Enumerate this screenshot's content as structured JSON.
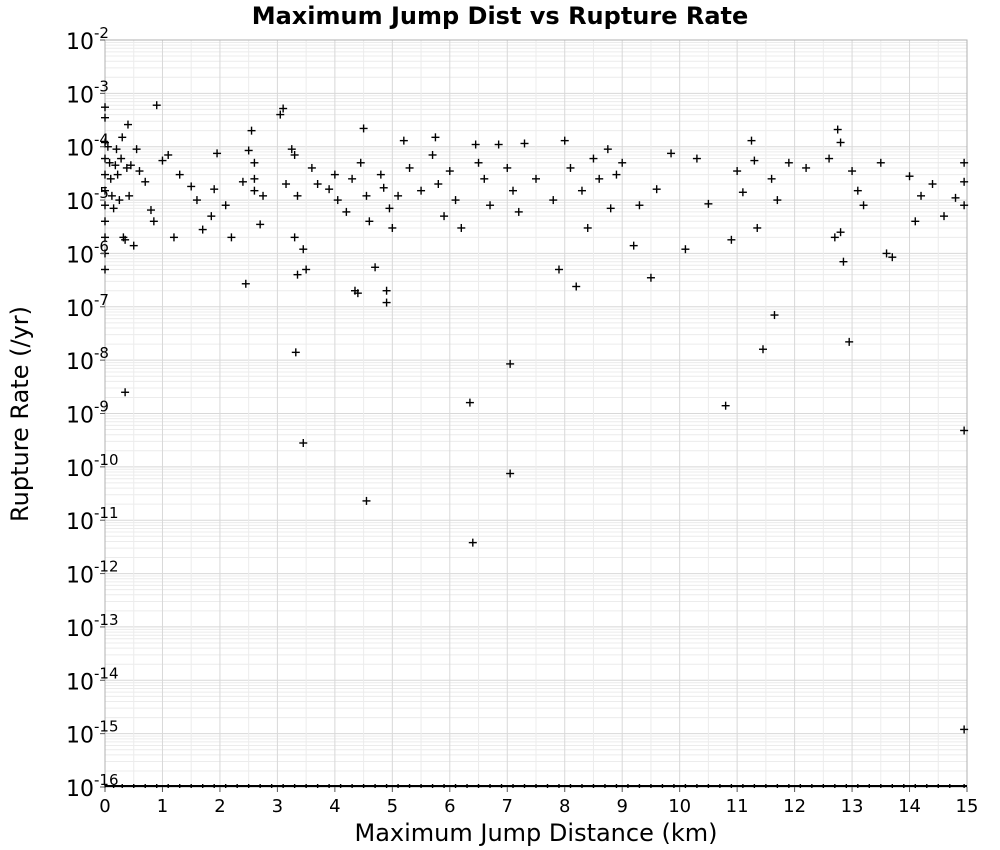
{
  "chart_data": {
    "type": "scatter",
    "title": "Maximum Jump Dist vs Rupture Rate",
    "xlabel": "Maximum Jump Distance (km)",
    "ylabel": "Rupture Rate (/yr)",
    "xlim": [
      0,
      15
    ],
    "ylim": [
      1e-16,
      0.01
    ],
    "yscale": "log",
    "grid": true,
    "marker": "plus",
    "x_ticks": [
      "0",
      "1",
      "2",
      "3",
      "4",
      "5",
      "6",
      "7",
      "8",
      "9",
      "10",
      "11",
      "12",
      "13",
      "14",
      "15"
    ],
    "y_ticks": [
      {
        "base": "10",
        "exp": "-2"
      },
      {
        "base": "10",
        "exp": "-3"
      },
      {
        "base": "10",
        "exp": "-4"
      },
      {
        "base": "10",
        "exp": "-5"
      },
      {
        "base": "10",
        "exp": "-6"
      },
      {
        "base": "10",
        "exp": "-7"
      },
      {
        "base": "10",
        "exp": "-8"
      },
      {
        "base": "10",
        "exp": "-9"
      },
      {
        "base": "10",
        "exp": "-10"
      },
      {
        "base": "10",
        "exp": "-11"
      },
      {
        "base": "10",
        "exp": "-12"
      },
      {
        "base": "10",
        "exp": "-13"
      },
      {
        "base": "10",
        "exp": "-14"
      },
      {
        "base": "10",
        "exp": "-15"
      },
      {
        "base": "10",
        "exp": "-16"
      }
    ],
    "points": [
      [
        0.0,
        0.00055
      ],
      [
        0.0,
        0.00035
      ],
      [
        0.0,
        0.00012
      ],
      [
        0.0,
        6e-05
      ],
      [
        0.0,
        3e-05
      ],
      [
        0.0,
        1.5e-05
      ],
      [
        0.0,
        8e-06
      ],
      [
        0.0,
        4e-06
      ],
      [
        0.0,
        2e-06
      ],
      [
        0.0,
        1e-06
      ],
      [
        0.0,
        5e-07
      ],
      [
        0.05,
        0.0001
      ],
      [
        0.08,
        5e-05
      ],
      [
        0.1,
        2.5e-05
      ],
      [
        0.12,
        1.2e-05
      ],
      [
        0.15,
        7e-06
      ],
      [
        0.18,
        4.5e-05
      ],
      [
        0.2,
        9e-05
      ],
      [
        0.22,
        3e-05
      ],
      [
        0.25,
        1e-05
      ],
      [
        0.28,
        6e-05
      ],
      [
        0.3,
        0.00015
      ],
      [
        0.32,
        2e-06
      ],
      [
        0.35,
        1.8e-06
      ],
      [
        0.35,
        2.5e-09
      ],
      [
        0.38,
        4e-05
      ],
      [
        0.4,
        0.00026
      ],
      [
        0.42,
        1.2e-05
      ],
      [
        0.45,
        4.5e-05
      ],
      [
        0.5,
        1.4e-06
      ],
      [
        0.55,
        9e-05
      ],
      [
        0.6,
        3.5e-05
      ],
      [
        0.7,
        2.2e-05
      ],
      [
        0.8,
        6.5e-06
      ],
      [
        0.85,
        4e-06
      ],
      [
        0.9,
        0.0006
      ],
      [
        1.0,
        5.5e-05
      ],
      [
        1.1,
        7e-05
      ],
      [
        1.2,
        2e-06
      ],
      [
        1.3,
        3e-05
      ],
      [
        1.5,
        1.8e-05
      ],
      [
        1.6,
        1e-05
      ],
      [
        1.7,
        2.8e-06
      ],
      [
        1.85,
        5e-06
      ],
      [
        1.9,
        1.6e-05
      ],
      [
        1.95,
        7.5e-05
      ],
      [
        2.1,
        8e-06
      ],
      [
        2.2,
        2e-06
      ],
      [
        2.4,
        2.2e-05
      ],
      [
        2.45,
        2.7e-07
      ],
      [
        2.5,
        8.5e-05
      ],
      [
        2.55,
        0.0002
      ],
      [
        2.6,
        5e-05
      ],
      [
        2.6,
        2.5e-05
      ],
      [
        2.6,
        1.5e-05
      ],
      [
        2.7,
        3.5e-06
      ],
      [
        2.75,
        1.2e-05
      ],
      [
        3.05,
        0.0004
      ],
      [
        3.1,
        0.00052
      ],
      [
        3.15,
        2e-05
      ],
      [
        3.25,
        9e-05
      ],
      [
        3.3,
        7e-05
      ],
      [
        3.3,
        2e-06
      ],
      [
        3.32,
        1.4e-08
      ],
      [
        3.35,
        4e-07
      ],
      [
        3.35,
        1.2e-05
      ],
      [
        3.45,
        1.2e-06
      ],
      [
        3.45,
        2.8e-10
      ],
      [
        3.5,
        5e-07
      ],
      [
        3.6,
        4e-05
      ],
      [
        3.7,
        2e-05
      ],
      [
        3.9,
        1.6e-05
      ],
      [
        4.0,
        3e-05
      ],
      [
        4.05,
        1e-05
      ],
      [
        4.2,
        6e-06
      ],
      [
        4.3,
        2.5e-05
      ],
      [
        4.35,
        2e-07
      ],
      [
        4.4,
        1.8e-07
      ],
      [
        4.45,
        5e-05
      ],
      [
        4.5,
        0.00022
      ],
      [
        4.55,
        1.2e-05
      ],
      [
        4.55,
        2.3e-11
      ],
      [
        4.6,
        4e-06
      ],
      [
        4.7,
        5.5e-07
      ],
      [
        4.8,
        3e-05
      ],
      [
        4.85,
        1.7e-05
      ],
      [
        4.9,
        1.2e-07
      ],
      [
        4.9,
        2e-07
      ],
      [
        4.95,
        7e-06
      ],
      [
        5.0,
        3e-06
      ],
      [
        5.1,
        1.2e-05
      ],
      [
        5.2,
        0.00013
      ],
      [
        5.3,
        4e-05
      ],
      [
        5.5,
        1.5e-05
      ],
      [
        5.7,
        7e-05
      ],
      [
        5.75,
        0.00015
      ],
      [
        5.8,
        2e-05
      ],
      [
        5.9,
        5e-06
      ],
      [
        6.0,
        3.5e-05
      ],
      [
        6.1,
        1e-05
      ],
      [
        6.2,
        3e-06
      ],
      [
        6.35,
        1.6e-09
      ],
      [
        6.4,
        3.8e-12
      ],
      [
        6.45,
        0.00011
      ],
      [
        6.5,
        5e-05
      ],
      [
        6.6,
        2.5e-05
      ],
      [
        6.7,
        8e-06
      ],
      [
        6.85,
        0.00011
      ],
      [
        7.0,
        4e-05
      ],
      [
        7.05,
        8.5e-09
      ],
      [
        7.05,
        7.5e-11
      ],
      [
        7.1,
        1.5e-05
      ],
      [
        7.2,
        6e-06
      ],
      [
        7.3,
        0.000115
      ],
      [
        7.5,
        2.5e-05
      ],
      [
        7.8,
        1e-05
      ],
      [
        7.9,
        5e-07
      ],
      [
        8.0,
        0.00013
      ],
      [
        8.1,
        4e-05
      ],
      [
        8.2,
        2.4e-07
      ],
      [
        8.3,
        1.5e-05
      ],
      [
        8.4,
        3e-06
      ],
      [
        8.5,
        6e-05
      ],
      [
        8.6,
        2.5e-05
      ],
      [
        8.75,
        9e-05
      ],
      [
        8.8,
        7e-06
      ],
      [
        8.9,
        3e-05
      ],
      [
        9.0,
        5e-05
      ],
      [
        9.2,
        1.4e-06
      ],
      [
        9.3,
        8e-06
      ],
      [
        9.5,
        3.5e-07
      ],
      [
        9.6,
        1.6e-05
      ],
      [
        9.85,
        7.5e-05
      ],
      [
        10.1,
        1.2e-06
      ],
      [
        10.3,
        6e-05
      ],
      [
        10.5,
        8.5e-06
      ],
      [
        10.8,
        1.4e-09
      ],
      [
        10.9,
        1.8e-06
      ],
      [
        11.0,
        3.5e-05
      ],
      [
        11.1,
        1.4e-05
      ],
      [
        11.25,
        0.00013
      ],
      [
        11.3,
        5.5e-05
      ],
      [
        11.35,
        3e-06
      ],
      [
        11.45,
        1.6e-08
      ],
      [
        11.6,
        2.5e-05
      ],
      [
        11.65,
        7e-08
      ],
      [
        11.7,
        1e-05
      ],
      [
        11.9,
        5e-05
      ],
      [
        12.2,
        4e-05
      ],
      [
        12.6,
        6e-05
      ],
      [
        12.7,
        2e-06
      ],
      [
        12.75,
        0.00021
      ],
      [
        12.8,
        0.00012
      ],
      [
        12.8,
        2.5e-06
      ],
      [
        12.85,
        7e-07
      ],
      [
        12.95,
        2.2e-08
      ],
      [
        13.0,
        3.5e-05
      ],
      [
        13.1,
        1.5e-05
      ],
      [
        13.2,
        8e-06
      ],
      [
        13.5,
        5e-05
      ],
      [
        13.6,
        1e-06
      ],
      [
        13.7,
        8.5e-07
      ],
      [
        14.0,
        2.8e-05
      ],
      [
        14.1,
        4e-06
      ],
      [
        14.2,
        1.2e-05
      ],
      [
        14.4,
        2e-05
      ],
      [
        14.6,
        5e-06
      ],
      [
        14.8,
        1.1e-05
      ],
      [
        14.95,
        5e-05
      ],
      [
        14.95,
        2.2e-05
      ],
      [
        14.95,
        8e-06
      ],
      [
        14.95,
        4.8e-10
      ],
      [
        14.95,
        1.2e-15
      ]
    ],
    "floor_points_x": [
      0.0,
      0.15,
      0.3,
      0.5,
      0.7,
      0.9,
      1.1,
      1.3,
      1.5,
      1.7,
      1.9,
      2.1,
      2.3,
      2.5,
      2.7,
      2.9,
      3.1,
      3.3,
      3.5,
      3.7,
      3.9,
      4.1,
      4.3,
      4.5,
      4.7,
      4.9,
      5.1,
      5.3,
      5.5,
      5.7,
      5.9,
      6.1,
      6.3,
      6.5,
      6.7,
      6.9,
      7.1,
      7.3,
      7.5,
      7.7,
      7.9,
      8.1,
      8.3,
      8.5,
      8.7,
      8.9,
      9.1,
      9.3,
      9.5,
      9.7,
      9.9,
      10.1,
      10.3,
      10.5,
      10.7,
      10.9,
      11.1,
      11.3,
      11.5,
      11.7,
      11.9,
      12.1,
      12.3,
      12.5,
      12.7,
      12.9,
      13.1,
      13.3,
      13.5,
      13.7,
      13.9,
      14.1,
      14.3,
      14.5,
      14.7,
      14.95
    ],
    "floor_value": 1e-16
  }
}
